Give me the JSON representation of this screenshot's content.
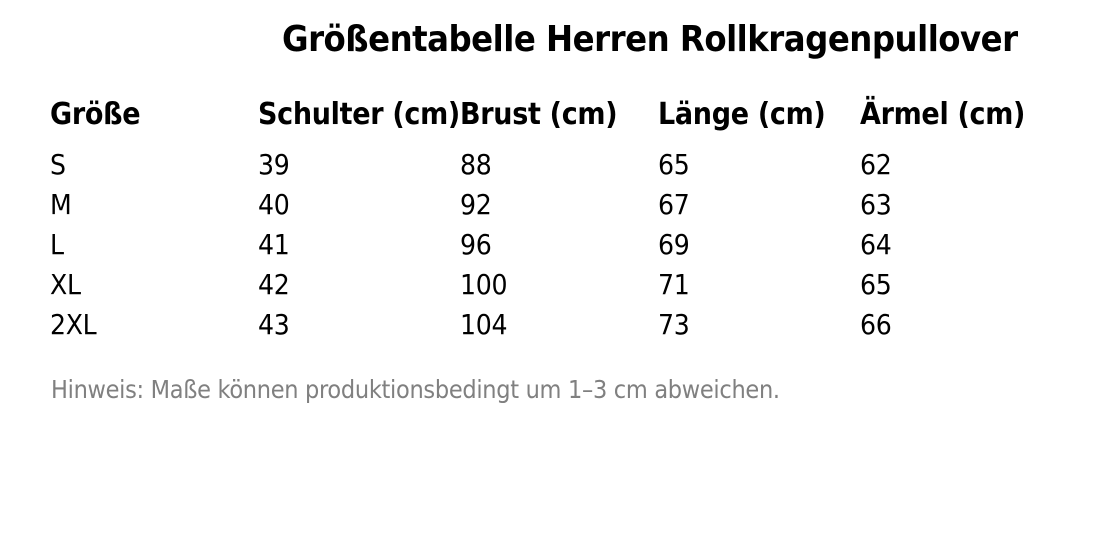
{
  "chart_data": {
    "type": "table",
    "title": "Größentabelle Herren Rollkragenpullover",
    "columns": [
      "Größe",
      "Schulter (cm)",
      "Brust (cm)",
      "Länge (cm)",
      "Ärmel (cm)"
    ],
    "rows": [
      [
        "S",
        "39",
        "88",
        "65",
        "62"
      ],
      [
        "M",
        "40",
        "92",
        "67",
        "63"
      ],
      [
        "L",
        "41",
        "96",
        "69",
        "64"
      ],
      [
        "XL",
        "42",
        "100",
        "71",
        "65"
      ],
      [
        "2XL",
        "43",
        "104",
        "73",
        "66"
      ]
    ],
    "note": "Hinweis: Maße können produktionsbedingt um 1–3 cm abweichen.",
    "layout": {
      "legend": "none",
      "grid": "off"
    }
  },
  "colors": {
    "text": "#000000",
    "note_text": "#808080",
    "background": "#ffffff"
  }
}
